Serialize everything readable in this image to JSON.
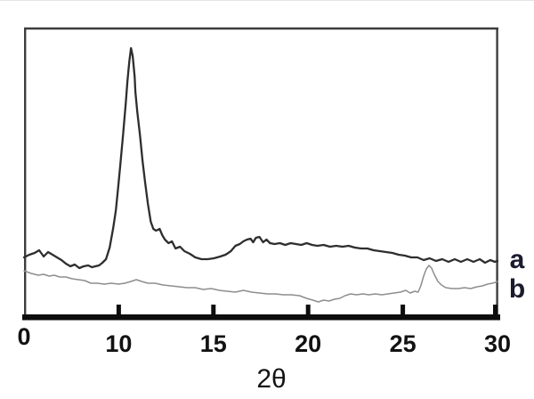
{
  "figure": {
    "background": "#ffffff",
    "frame_color": "#3d3d3d",
    "axis_color": "#0d0d0d",
    "tick_text_color": "#121212",
    "curve_label_color": "#1b1b2e"
  },
  "chart_data": {
    "type": "line",
    "title": "",
    "xlabel": "2θ",
    "ylabel": "",
    "grid": false,
    "x_plot_range": [
      5,
      30
    ],
    "y_range_au": [
      0,
      325
    ],
    "x_ticks": [
      {
        "label": "0",
        "value": 5,
        "mark": false
      },
      {
        "label": "10",
        "value": 10,
        "mark": true
      },
      {
        "label": "15",
        "value": 15,
        "mark": true
      },
      {
        "label": "20",
        "value": 20,
        "mark": true
      },
      {
        "label": "25",
        "value": 25,
        "mark": true
      },
      {
        "label": "30",
        "value": 30,
        "mark": true
      }
    ],
    "series_label_position": "right-of-plot",
    "series": [
      {
        "name": "a",
        "label": "a",
        "color": "#2e2e2e",
        "stroke_width": 2.3,
        "label_anchor_au": 64,
        "main_peak_2theta": 10.65,
        "points": [
          [
            5.0,
            67
          ],
          [
            5.28,
            70
          ],
          [
            5.56,
            72
          ],
          [
            5.8,
            75
          ],
          [
            6.04,
            68
          ],
          [
            6.27,
            73
          ],
          [
            6.51,
            70
          ],
          [
            6.74,
            67
          ],
          [
            6.98,
            64
          ],
          [
            7.21,
            60
          ],
          [
            7.45,
            57
          ],
          [
            7.68,
            59
          ],
          [
            7.92,
            55
          ],
          [
            8.15,
            57
          ],
          [
            8.39,
            58
          ],
          [
            8.58,
            56
          ],
          [
            8.77,
            57
          ],
          [
            8.96,
            58
          ],
          [
            9.14,
            61
          ],
          [
            9.33,
            65
          ],
          [
            9.52,
            78
          ],
          [
            9.71,
            100
          ],
          [
            9.85,
            120
          ],
          [
            9.99,
            150
          ],
          [
            10.08,
            170
          ],
          [
            10.23,
            205
          ],
          [
            10.37,
            240
          ],
          [
            10.46,
            265
          ],
          [
            10.56,
            287
          ],
          [
            10.65,
            302
          ],
          [
            10.74,
            293
          ],
          [
            10.84,
            270
          ],
          [
            10.88,
            253
          ],
          [
            10.98,
            230
          ],
          [
            11.12,
            205
          ],
          [
            11.26,
            175
          ],
          [
            11.4,
            150
          ],
          [
            11.54,
            127
          ],
          [
            11.69,
            107
          ],
          [
            11.83,
            99
          ],
          [
            11.97,
            97
          ],
          [
            12.16,
            99
          ],
          [
            12.3,
            92
          ],
          [
            12.44,
            87
          ],
          [
            12.63,
            83
          ],
          [
            12.81,
            85
          ],
          [
            13.0,
            77
          ],
          [
            13.24,
            79
          ],
          [
            13.47,
            74
          ],
          [
            13.76,
            71
          ],
          [
            14.04,
            67
          ],
          [
            14.37,
            65
          ],
          [
            14.7,
            65
          ],
          [
            15.03,
            66
          ],
          [
            15.36,
            68
          ],
          [
            15.64,
            70
          ],
          [
            15.92,
            74
          ],
          [
            16.16,
            80
          ],
          [
            16.39,
            82
          ],
          [
            16.58,
            85
          ],
          [
            16.77,
            87
          ],
          [
            16.96,
            88
          ],
          [
            17.1,
            84
          ],
          [
            17.24,
            89
          ],
          [
            17.43,
            90
          ],
          [
            17.62,
            84
          ],
          [
            17.8,
            87
          ],
          [
            17.99,
            83
          ],
          [
            18.23,
            82
          ],
          [
            18.51,
            83
          ],
          [
            18.79,
            81
          ],
          [
            19.08,
            83
          ],
          [
            19.36,
            82
          ],
          [
            19.64,
            81
          ],
          [
            19.92,
            83
          ],
          [
            20.21,
            81
          ],
          [
            20.49,
            80
          ],
          [
            20.82,
            81
          ],
          [
            21.15,
            79
          ],
          [
            21.48,
            80
          ],
          [
            21.81,
            79
          ],
          [
            22.14,
            80
          ],
          [
            22.47,
            78
          ],
          [
            22.8,
            77
          ],
          [
            23.13,
            77
          ],
          [
            23.46,
            75
          ],
          [
            23.79,
            74
          ],
          [
            24.12,
            73
          ],
          [
            24.45,
            72
          ],
          [
            24.78,
            70
          ],
          [
            25.11,
            69
          ],
          [
            25.44,
            67
          ],
          [
            25.77,
            67
          ],
          [
            26.1,
            64
          ],
          [
            26.42,
            66
          ],
          [
            26.75,
            63
          ],
          [
            27.08,
            65
          ],
          [
            27.41,
            62
          ],
          [
            27.74,
            65
          ],
          [
            28.07,
            62
          ],
          [
            28.4,
            65
          ],
          [
            28.73,
            62
          ],
          [
            29.06,
            65
          ],
          [
            29.34,
            61
          ],
          [
            29.62,
            64
          ],
          [
            29.86,
            62
          ],
          [
            30.0,
            63
          ]
        ]
      },
      {
        "name": "b",
        "label": "b",
        "color": "#8e8e8e",
        "stroke_width": 1.5,
        "label_anchor_au": 31,
        "main_peak_2theta": 26.38,
        "points": [
          [
            5.0,
            52
          ],
          [
            5.38,
            49
          ],
          [
            5.75,
            47
          ],
          [
            6.04,
            48
          ],
          [
            6.32,
            46
          ],
          [
            6.6,
            47
          ],
          [
            6.88,
            45
          ],
          [
            7.21,
            45
          ],
          [
            7.54,
            43
          ],
          [
            7.87,
            42
          ],
          [
            8.2,
            41
          ],
          [
            8.53,
            38
          ],
          [
            8.86,
            38
          ],
          [
            9.24,
            37
          ],
          [
            9.61,
            38
          ],
          [
            9.99,
            37
          ],
          [
            10.32,
            38
          ],
          [
            10.65,
            40
          ],
          [
            10.93,
            42
          ],
          [
            11.21,
            40
          ],
          [
            11.54,
            38
          ],
          [
            11.92,
            38
          ],
          [
            12.34,
            36
          ],
          [
            12.77,
            35
          ],
          [
            13.19,
            34
          ],
          [
            13.61,
            33
          ],
          [
            14.04,
            33
          ],
          [
            14.46,
            31
          ],
          [
            14.89,
            32
          ],
          [
            15.31,
            30
          ],
          [
            15.73,
            29
          ],
          [
            16.16,
            28
          ],
          [
            16.58,
            30
          ],
          [
            17.01,
            28
          ],
          [
            17.43,
            27
          ],
          [
            17.85,
            26
          ],
          [
            18.28,
            26
          ],
          [
            18.7,
            25
          ],
          [
            19.12,
            25
          ],
          [
            19.55,
            24
          ],
          [
            19.92,
            21
          ],
          [
            20.25,
            19
          ],
          [
            20.54,
            17
          ],
          [
            20.82,
            19
          ],
          [
            21.1,
            18
          ],
          [
            21.38,
            20
          ],
          [
            21.67,
            21
          ],
          [
            21.95,
            24
          ],
          [
            22.24,
            26
          ],
          [
            22.56,
            25
          ],
          [
            22.89,
            26
          ],
          [
            23.22,
            25
          ],
          [
            23.55,
            26
          ],
          [
            23.88,
            25
          ],
          [
            24.21,
            26
          ],
          [
            24.54,
            27
          ],
          [
            24.87,
            28
          ],
          [
            25.15,
            30
          ],
          [
            25.39,
            27
          ],
          [
            25.62,
            29
          ],
          [
            25.81,
            28
          ],
          [
            25.95,
            35
          ],
          [
            26.1,
            46
          ],
          [
            26.24,
            54
          ],
          [
            26.38,
            58
          ],
          [
            26.52,
            55
          ],
          [
            26.66,
            48
          ],
          [
            26.85,
            40
          ],
          [
            27.04,
            36
          ],
          [
            27.27,
            33
          ],
          [
            27.6,
            32
          ],
          [
            27.93,
            32
          ],
          [
            28.26,
            33
          ],
          [
            28.59,
            32
          ],
          [
            28.92,
            34
          ],
          [
            29.2,
            35
          ],
          [
            29.48,
            37
          ],
          [
            29.72,
            38
          ],
          [
            29.91,
            39
          ],
          [
            30.0,
            40
          ]
        ]
      }
    ]
  }
}
